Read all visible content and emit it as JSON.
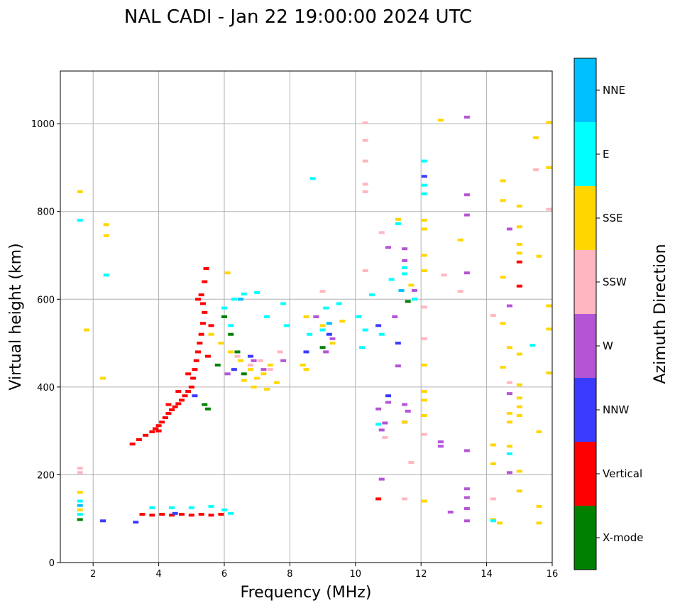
{
  "chart_data": {
    "type": "scatter",
    "title": "NAL CADI - Jan 22 19:00:00 2024 UTC",
    "xlabel": "Frequency (MHz)",
    "ylabel": "Virtual height (km)",
    "xlim": [
      1,
      16
    ],
    "ylim": [
      0,
      1120
    ],
    "xticks": [
      2,
      4,
      6,
      8,
      10,
      12,
      14,
      16
    ],
    "yticks": [
      0,
      200,
      400,
      600,
      800,
      1000
    ],
    "grid": true,
    "colorbar": {
      "label": "Azimuth Direction",
      "categories": [
        "X-mode",
        "Vertical",
        "NNW",
        "W",
        "SSW",
        "SSE",
        "E",
        "NNE"
      ],
      "colors": [
        "#008000",
        "#ff0000",
        "#3b3bff",
        "#b455d6",
        "#ffb6c1",
        "#ffd700",
        "#00ffff",
        "#00bfff"
      ]
    },
    "series": [
      {
        "name": "Vertical",
        "color": "#ff0000",
        "points": [
          [
            3.2,
            270
          ],
          [
            3.4,
            280
          ],
          [
            3.6,
            290
          ],
          [
            3.8,
            298
          ],
          [
            3.9,
            305
          ],
          [
            4.0,
            312
          ],
          [
            4.1,
            320
          ],
          [
            4.2,
            330
          ],
          [
            4.3,
            340
          ],
          [
            4.4,
            348
          ],
          [
            4.5,
            355
          ],
          [
            4.6,
            362
          ],
          [
            4.7,
            370
          ],
          [
            4.8,
            380
          ],
          [
            4.9,
            390
          ],
          [
            5.0,
            400
          ],
          [
            5.05,
            420
          ],
          [
            5.1,
            440
          ],
          [
            5.15,
            460
          ],
          [
            5.2,
            480
          ],
          [
            5.25,
            500
          ],
          [
            5.3,
            520
          ],
          [
            5.35,
            545
          ],
          [
            5.4,
            570
          ],
          [
            5.35,
            590
          ],
          [
            5.3,
            610
          ],
          [
            5.4,
            640
          ],
          [
            5.45,
            670
          ],
          [
            4.0,
            300
          ],
          [
            4.3,
            360
          ],
          [
            4.6,
            390
          ],
          [
            4.9,
            430
          ],
          [
            5.5,
            470
          ],
          [
            5.6,
            540
          ],
          [
            5.2,
            600
          ],
          [
            3.5,
            110
          ],
          [
            3.8,
            108
          ],
          [
            4.1,
            110
          ],
          [
            4.4,
            108
          ],
          [
            4.7,
            110
          ],
          [
            5.0,
            108
          ],
          [
            5.3,
            110
          ],
          [
            5.6,
            108
          ],
          [
            5.9,
            110
          ],
          [
            15.0,
            630
          ],
          [
            15.0,
            685
          ],
          [
            10.7,
            145
          ]
        ]
      },
      {
        "name": "X-mode",
        "color": "#008000",
        "points": [
          [
            5.5,
            350
          ],
          [
            6.0,
            560
          ],
          [
            6.2,
            520
          ],
          [
            6.6,
            430
          ],
          [
            5.8,
            450
          ],
          [
            6.4,
            480
          ],
          [
            9.0,
            490
          ],
          [
            11.6,
            595
          ],
          [
            1.6,
            98
          ],
          [
            5.4,
            360
          ]
        ]
      },
      {
        "name": "NNW",
        "color": "#3b3bff",
        "points": [
          [
            2.3,
            95
          ],
          [
            3.3,
            92
          ],
          [
            4.5,
            112
          ],
          [
            5.1,
            380
          ],
          [
            6.3,
            440
          ],
          [
            9.2,
            520
          ],
          [
            10.7,
            540
          ],
          [
            11.0,
            380
          ],
          [
            11.3,
            500
          ],
          [
            11.5,
            320
          ],
          [
            12.1,
            880
          ],
          [
            6.8,
            470
          ],
          [
            8.5,
            480
          ]
        ]
      },
      {
        "name": "W",
        "color": "#b455d6",
        "points": [
          [
            13.4,
            1015
          ],
          [
            13.4,
            838
          ],
          [
            13.4,
            792
          ],
          [
            13.4,
            660
          ],
          [
            13.4,
            255
          ],
          [
            13.4,
            168
          ],
          [
            13.4,
            148
          ],
          [
            13.4,
            123
          ],
          [
            13.4,
            95
          ],
          [
            12.9,
            115
          ],
          [
            12.6,
            275
          ],
          [
            12.6,
            265
          ],
          [
            10.7,
            350
          ],
          [
            10.8,
            302
          ],
          [
            10.9,
            318
          ],
          [
            11.0,
            365
          ],
          [
            11.2,
            560
          ],
          [
            11.3,
            448
          ],
          [
            11.5,
            360
          ],
          [
            11.5,
            715
          ],
          [
            11.5,
            688
          ],
          [
            11.6,
            345
          ],
          [
            11.8,
            620
          ],
          [
            11.0,
            718
          ],
          [
            10.8,
            190
          ],
          [
            14.7,
            760
          ],
          [
            14.7,
            585
          ],
          [
            14.7,
            385
          ],
          [
            14.7,
            205
          ],
          [
            8.8,
            560
          ],
          [
            9.1,
            480
          ],
          [
            9.3,
            510
          ],
          [
            6.1,
            430
          ],
          [
            6.9,
            460
          ],
          [
            7.2,
            440
          ],
          [
            7.8,
            460
          ]
        ]
      },
      {
        "name": "SSW",
        "color": "#ffb6c1",
        "points": [
          [
            10.3,
            1002
          ],
          [
            10.3,
            962
          ],
          [
            10.3,
            915
          ],
          [
            10.3,
            862
          ],
          [
            10.3,
            845
          ],
          [
            10.3,
            665
          ],
          [
            10.8,
            752
          ],
          [
            10.9,
            285
          ],
          [
            12.1,
            582
          ],
          [
            12.1,
            510
          ],
          [
            12.1,
            292
          ],
          [
            12.7,
            655
          ],
          [
            13.2,
            618
          ],
          [
            14.2,
            563
          ],
          [
            14.2,
            145
          ],
          [
            14.7,
            410
          ],
          [
            15.5,
            895
          ],
          [
            15.9,
            805
          ],
          [
            11.7,
            228
          ],
          [
            11.5,
            145
          ],
          [
            6.4,
            470
          ],
          [
            6.8,
            450
          ],
          [
            7.1,
            460
          ],
          [
            7.4,
            440
          ],
          [
            7.7,
            480
          ],
          [
            9.0,
            618
          ],
          [
            1.6,
            215
          ],
          [
            1.6,
            205
          ]
        ]
      },
      {
        "name": "SSE",
        "color": "#ffd700",
        "points": [
          [
            12.6,
            1008
          ],
          [
            15.9,
            1003
          ],
          [
            15.9,
            900
          ],
          [
            15.5,
            968
          ],
          [
            15.0,
            812
          ],
          [
            15.0,
            765
          ],
          [
            15.0,
            725
          ],
          [
            15.0,
            705
          ],
          [
            15.6,
            698
          ],
          [
            15.0,
            475
          ],
          [
            15.0,
            405
          ],
          [
            15.0,
            375
          ],
          [
            15.0,
            355
          ],
          [
            15.0,
            335
          ],
          [
            15.6,
            298
          ],
          [
            15.0,
            208
          ],
          [
            15.0,
            163
          ],
          [
            15.6,
            128
          ],
          [
            15.6,
            90
          ],
          [
            14.5,
            870
          ],
          [
            14.5,
            825
          ],
          [
            14.5,
            650
          ],
          [
            14.5,
            545
          ],
          [
            14.5,
            445
          ],
          [
            14.7,
            490
          ],
          [
            14.7,
            340
          ],
          [
            14.7,
            320
          ],
          [
            14.7,
            265
          ],
          [
            14.2,
            268
          ],
          [
            14.2,
            225
          ],
          [
            14.4,
            90
          ],
          [
            14.2,
            98
          ],
          [
            13.2,
            735
          ],
          [
            12.1,
            780
          ],
          [
            12.1,
            760
          ],
          [
            12.1,
            700
          ],
          [
            12.1,
            665
          ],
          [
            12.1,
            450
          ],
          [
            12.1,
            390
          ],
          [
            12.1,
            370
          ],
          [
            12.1,
            335
          ],
          [
            12.1,
            140
          ],
          [
            11.3,
            782
          ],
          [
            11.5,
            320
          ],
          [
            11.7,
            632
          ],
          [
            15.9,
            585
          ],
          [
            15.9,
            532
          ],
          [
            15.9,
            432
          ],
          [
            1.6,
            845
          ],
          [
            1.6,
            160
          ],
          [
            1.6,
            120
          ],
          [
            2.3,
            420
          ],
          [
            2.4,
            770
          ],
          [
            2.4,
            745
          ],
          [
            1.8,
            530
          ],
          [
            5.6,
            520
          ],
          [
            5.9,
            500
          ],
          [
            6.2,
            480
          ],
          [
            6.5,
            460
          ],
          [
            6.8,
            440
          ],
          [
            7.0,
            420
          ],
          [
            7.2,
            430
          ],
          [
            7.4,
            450
          ],
          [
            7.6,
            410
          ],
          [
            6.6,
            415
          ],
          [
            6.9,
            400
          ],
          [
            7.3,
            395
          ],
          [
            8.4,
            450
          ],
          [
            8.5,
            440
          ],
          [
            8.5,
            560
          ],
          [
            9.0,
            540
          ],
          [
            9.3,
            500
          ],
          [
            9.6,
            550
          ],
          [
            6.1,
            660
          ]
        ]
      },
      {
        "name": "E",
        "color": "#00ffff",
        "points": [
          [
            8.7,
            875
          ],
          [
            12.1,
            915
          ],
          [
            12.1,
            860
          ],
          [
            12.1,
            840
          ],
          [
            11.3,
            772
          ],
          [
            11.5,
            672
          ],
          [
            11.5,
            658
          ],
          [
            11.8,
            600
          ],
          [
            10.1,
            560
          ],
          [
            10.3,
            530
          ],
          [
            10.5,
            610
          ],
          [
            10.8,
            520
          ],
          [
            11.1,
            645
          ],
          [
            10.2,
            490
          ],
          [
            10.7,
            315
          ],
          [
            14.7,
            248
          ],
          [
            15.4,
            495
          ],
          [
            14.2,
            95
          ],
          [
            1.6,
            780
          ],
          [
            1.6,
            140
          ],
          [
            1.6,
            110
          ],
          [
            2.4,
            655
          ],
          [
            3.8,
            125
          ],
          [
            4.4,
            125
          ],
          [
            5.0,
            125
          ],
          [
            5.6,
            128
          ],
          [
            6.0,
            120
          ],
          [
            6.2,
            112
          ],
          [
            6.3,
            600
          ],
          [
            6.6,
            612
          ],
          [
            7.0,
            615
          ],
          [
            6.0,
            580
          ],
          [
            6.2,
            540
          ],
          [
            7.3,
            560
          ],
          [
            7.8,
            590
          ],
          [
            7.9,
            540
          ],
          [
            8.6,
            520
          ],
          [
            9.1,
            580
          ],
          [
            9.5,
            590
          ],
          [
            9.0,
            530
          ]
        ]
      },
      {
        "name": "NNE",
        "color": "#00bfff",
        "points": [
          [
            1.6,
            130
          ],
          [
            11.4,
            620
          ],
          [
            9.2,
            545
          ],
          [
            6.5,
            600
          ]
        ]
      }
    ]
  }
}
